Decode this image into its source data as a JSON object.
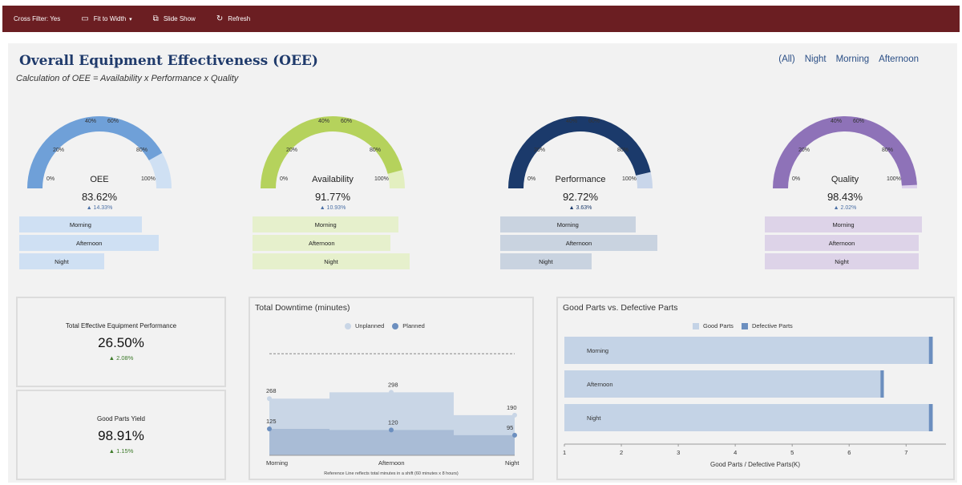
{
  "toolbar": {
    "cross_filter": "Cross Filter: Yes",
    "fit_to_width": "Fit to Width",
    "slide_show": "Slide Show",
    "refresh": "Refresh",
    "bg_color": "#6b1e22"
  },
  "header": {
    "title": "Overall Equipment Effectiveness (OEE)",
    "subtitle": "Calculation of OEE = Availability x Performance x Quality"
  },
  "shift_filter": [
    "(All)",
    "Night",
    "Morning",
    "Afternoon"
  ],
  "gauge_ticks": [
    "0%",
    "20%",
    "40%",
    "60%",
    "80%",
    "100%"
  ],
  "gauges": [
    {
      "label": "OEE",
      "value": "83.62%",
      "fraction": 0.8362,
      "delta": "▲ 14.33%",
      "color": "#6fa0d8",
      "light": "#cfe0f3",
      "bar_color": "#cfe0f3",
      "shifts": [
        {
          "name": "Morning",
          "level": 0.78
        },
        {
          "name": "Afternoon",
          "level": 0.89
        },
        {
          "name": "Night",
          "level": 0.54
        }
      ]
    },
    {
      "label": "Availability",
      "value": "91.77%",
      "fraction": 0.9177,
      "delta": "▲ 10.93%",
      "color": "#b5d25c",
      "light": "#e3efc0",
      "bar_color": "#e6f0cc",
      "shifts": [
        {
          "name": "Morning",
          "level": 0.93
        },
        {
          "name": "Afternoon",
          "level": 0.88
        },
        {
          "name": "Night",
          "level": 1.0
        }
      ]
    },
    {
      "label": "Performance",
      "value": "92.72%",
      "fraction": 0.9272,
      "delta": "▲ 3.63%",
      "color": "#1b3a6b",
      "light": "#c9d6ea",
      "bar_color": "#c9d3e0",
      "shifts": [
        {
          "name": "Morning",
          "level": 0.86
        },
        {
          "name": "Afternoon",
          "level": 1.0
        },
        {
          "name": "Night",
          "level": 0.58
        }
      ]
    },
    {
      "label": "Quality",
      "value": "98.43%",
      "fraction": 0.9843,
      "delta": "▲ 2.02%",
      "color": "#8e72b8",
      "light": "#ddd1ec",
      "bar_color": "#ddd3e8",
      "shifts": [
        {
          "name": "Morning",
          "level": 1.0
        },
        {
          "name": "Afternoon",
          "level": 0.98
        },
        {
          "name": "Night",
          "level": 0.98
        }
      ]
    }
  ],
  "kpi1": {
    "label": "Total Effective Equipment Performance",
    "value": "26.50%",
    "delta": "▲ 2.08%"
  },
  "kpi2": {
    "label": "Good Parts Yield",
    "value": "98.91%",
    "delta": "▲ 1.15%"
  },
  "downtime": {
    "title": "Total Downtime (minutes)",
    "legend_unplanned": "Unplanned",
    "legend_planned": "Planned",
    "caption": "Reference Line reflects total minutes in a shift (60 minutes x 8 hours)",
    "colors": {
      "unplanned": "#c9d6e6",
      "planned": "#6c8fbf"
    }
  },
  "parts": {
    "title": "Good Parts vs. Defective Parts",
    "legend_good": "Good Parts",
    "legend_defective": "Defective Parts",
    "xlabel": "Good Parts / Defective Parts(K)",
    "colors": {
      "good": "#c4d3e6",
      "defective": "#6c8fbf"
    }
  },
  "chart_data": [
    {
      "type": "area",
      "title": "Total Downtime (minutes)",
      "categories": [
        "Morning",
        "Afternoon",
        "Night"
      ],
      "series": [
        {
          "name": "Unplanned",
          "values": [
            268,
            298,
            190
          ]
        },
        {
          "name": "Planned",
          "values": [
            125,
            120,
            95
          ]
        }
      ],
      "reference_line": 480,
      "ylim": [
        0,
        500
      ],
      "legend": "top",
      "grid": false
    },
    {
      "type": "bar",
      "title": "Good Parts vs. Defective Parts",
      "categories": [
        "Morning",
        "Afternoon",
        "Night"
      ],
      "series": [
        {
          "name": "Good Parts",
          "values": [
            7.4,
            6.55,
            7.4
          ]
        },
        {
          "name": "Defective Parts",
          "values": [
            0.08,
            0.07,
            0.08
          ]
        }
      ],
      "xlabel": "Good Parts / Defective Parts(K)",
      "xticks": [
        "1",
        "2",
        "3",
        "4",
        "5",
        "6",
        "7"
      ],
      "xlim": [
        1,
        7.7
      ],
      "orientation": "horizontal",
      "legend": "top",
      "grid": false
    }
  ]
}
